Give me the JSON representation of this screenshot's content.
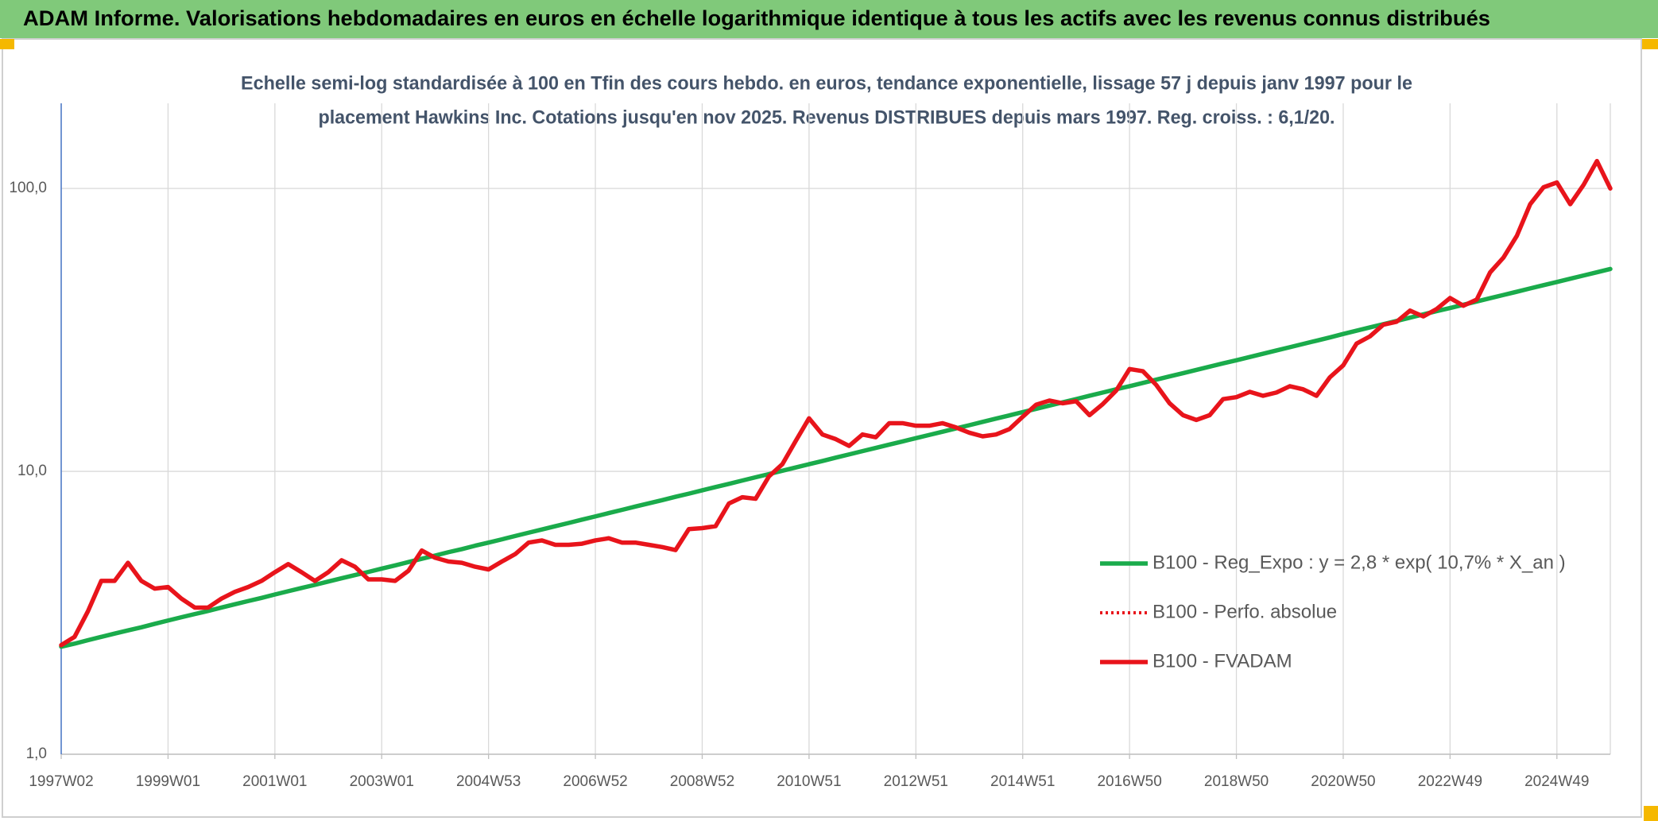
{
  "header": {
    "title": "ADAM Informe. Valorisations hebdomadaires en euros en échelle logarithmique identique à tous les actifs avec les revenus connus distribués"
  },
  "chart_data": {
    "type": "line",
    "title": [
      "Echelle semi-log standardisée à 100 en Tfin des cours hebdo. en euros, tendance exponentielle, lissage 57 j depuis janv 1997 pour le",
      "placement Hawkins Inc. Cotations jusqu'en nov 2025. Revenus DISTRIBUES depuis mars 1997. Reg. croiss. : 6,1/20."
    ],
    "x": [
      "1997W02",
      null,
      null,
      null,
      null,
      null,
      null,
      null,
      "1999W01",
      null,
      null,
      null,
      null,
      null,
      null,
      null,
      "2001W01",
      null,
      null,
      null,
      null,
      null,
      null,
      null,
      "2003W01",
      null,
      null,
      null,
      null,
      null,
      null,
      null,
      "2004W53",
      null,
      null,
      null,
      null,
      null,
      null,
      null,
      "2006W52",
      null,
      null,
      null,
      null,
      null,
      null,
      null,
      "2008W52",
      null,
      null,
      null,
      null,
      null,
      null,
      null,
      "2010W51",
      null,
      null,
      null,
      null,
      null,
      null,
      null,
      "2012W51",
      null,
      null,
      null,
      null,
      null,
      null,
      null,
      "2014W51",
      null,
      null,
      null,
      null,
      null,
      null,
      null,
      "2016W50",
      null,
      null,
      null,
      null,
      null,
      null,
      null,
      "2018W50",
      null,
      null,
      null,
      null,
      null,
      null,
      null,
      "2020W50",
      null,
      null,
      null,
      null,
      null,
      null,
      null,
      "2022W49",
      null,
      null,
      null,
      null,
      null,
      null,
      null,
      "2024W49",
      null,
      null,
      null,
      null
    ],
    "log_y": true,
    "ylim": [
      1,
      200
    ],
    "yticks": [
      {
        "value": 1,
        "label": "1,0"
      },
      {
        "value": 10,
        "label": "10,0"
      },
      {
        "value": 100,
        "label": "100,0"
      }
    ],
    "grid": true,
    "legend": "lower right",
    "series": [
      {
        "name": "B100 - Reg_Expo : y = 2,8 * exp( 10,7% *  X_an )",
        "color": "#1aab4b",
        "line_style": "solid",
        "values": [
          2.4,
          2.46,
          2.53,
          2.6,
          2.67,
          2.74,
          2.81,
          2.89,
          2.97,
          3.05,
          3.13,
          3.21,
          3.3,
          3.39,
          3.48,
          3.57,
          3.67,
          3.77,
          3.87,
          3.97,
          4.08,
          4.19,
          4.3,
          4.41,
          4.53,
          4.65,
          4.78,
          4.91,
          5.04,
          5.18,
          5.31,
          5.46,
          5.6,
          5.75,
          5.91,
          6.07,
          6.23,
          6.4,
          6.57,
          6.75,
          6.93,
          7.12,
          7.31,
          7.51,
          7.71,
          7.91,
          8.13,
          8.34,
          8.57,
          8.8,
          9.03,
          9.28,
          9.53,
          9.78,
          10.05,
          10.32,
          10.6,
          10.88,
          11.18,
          11.48,
          11.79,
          12.1,
          12.43,
          12.76,
          13.1,
          13.45,
          13.81,
          14.18,
          14.56,
          14.96,
          15.36,
          15.77,
          16.2,
          16.63,
          17.08,
          17.54,
          18.01,
          18.5,
          19.0,
          19.51,
          20.0,
          20.54,
          21.09,
          21.66,
          22.24,
          22.84,
          23.45,
          24.09,
          24.7,
          25.37,
          26.05,
          26.75,
          27.47,
          28.21,
          28.97,
          29.75,
          30.6,
          31.42,
          32.27,
          33.14,
          34.03,
          34.94,
          35.88,
          36.85,
          37.8,
          38.82,
          39.86,
          40.93,
          42.03,
          43.16,
          44.33,
          45.52,
          46.7,
          47.96,
          49.25,
          50.57,
          51.93
        ]
      },
      {
        "name": "B100 - Perfo. absolue",
        "color": "#e8141b",
        "line_style": "dotted",
        "values": [
          2.43,
          2.6,
          3.2,
          4.1,
          4.1,
          4.75,
          4.1,
          3.85,
          3.9,
          3.55,
          3.3,
          3.3,
          3.55,
          3.75,
          3.9,
          4.1,
          4.4,
          4.7,
          4.4,
          4.1,
          4.4,
          4.85,
          4.6,
          4.15,
          4.15,
          4.1,
          4.45,
          5.25,
          4.95,
          4.8,
          4.75,
          4.6,
          4.5,
          4.8,
          5.1,
          5.6,
          5.7,
          5.5,
          5.5,
          5.55,
          5.7,
          5.8,
          5.6,
          5.6,
          5.5,
          5.4,
          5.27,
          6.25,
          6.3,
          6.4,
          7.7,
          8.1,
          8.0,
          9.6,
          10.6,
          12.8,
          15.4,
          13.5,
          13.0,
          12.3,
          13.5,
          13.2,
          14.8,
          14.8,
          14.5,
          14.5,
          14.8,
          14.3,
          13.7,
          13.3,
          13.5,
          14.1,
          15.6,
          17.2,
          17.8,
          17.4,
          17.7,
          15.8,
          17.3,
          19.3,
          23.0,
          22.6,
          20.2,
          17.4,
          15.8,
          15.2,
          15.8,
          18.0,
          18.3,
          19.1,
          18.5,
          19.0,
          20.0,
          19.5,
          18.5,
          21.5,
          23.7,
          28.3,
          30.0,
          33.0,
          33.8,
          37.0,
          35.3,
          37.5,
          41.0,
          38.5,
          40.5,
          50.5,
          57.0,
          68.0,
          88.0,
          101,
          105,
          88,
          103,
          125,
          100
        ]
      },
      {
        "name": "B100 - FVADAM",
        "color": "#e8141b",
        "line_style": "solid",
        "values": [
          2.43,
          2.6,
          3.2,
          4.1,
          4.1,
          4.75,
          4.1,
          3.85,
          3.9,
          3.55,
          3.3,
          3.3,
          3.55,
          3.75,
          3.9,
          4.1,
          4.4,
          4.7,
          4.4,
          4.1,
          4.4,
          4.85,
          4.6,
          4.15,
          4.15,
          4.1,
          4.45,
          5.25,
          4.95,
          4.8,
          4.75,
          4.6,
          4.5,
          4.8,
          5.1,
          5.6,
          5.7,
          5.5,
          5.5,
          5.55,
          5.7,
          5.8,
          5.6,
          5.6,
          5.5,
          5.4,
          5.27,
          6.25,
          6.3,
          6.4,
          7.7,
          8.1,
          8.0,
          9.6,
          10.6,
          12.8,
          15.4,
          13.5,
          13.0,
          12.3,
          13.5,
          13.2,
          14.8,
          14.8,
          14.5,
          14.5,
          14.8,
          14.3,
          13.7,
          13.3,
          13.5,
          14.1,
          15.6,
          17.2,
          17.8,
          17.4,
          17.7,
          15.8,
          17.3,
          19.3,
          23.0,
          22.6,
          20.2,
          17.4,
          15.8,
          15.2,
          15.8,
          18.0,
          18.3,
          19.1,
          18.5,
          19.0,
          20.0,
          19.5,
          18.5,
          21.5,
          23.7,
          28.3,
          30.0,
          33.0,
          33.8,
          37.0,
          35.3,
          37.5,
          41.0,
          38.5,
          40.5,
          50.5,
          57.0,
          68.0,
          88.0,
          101,
          105,
          88,
          103,
          125,
          100
        ]
      }
    ]
  }
}
